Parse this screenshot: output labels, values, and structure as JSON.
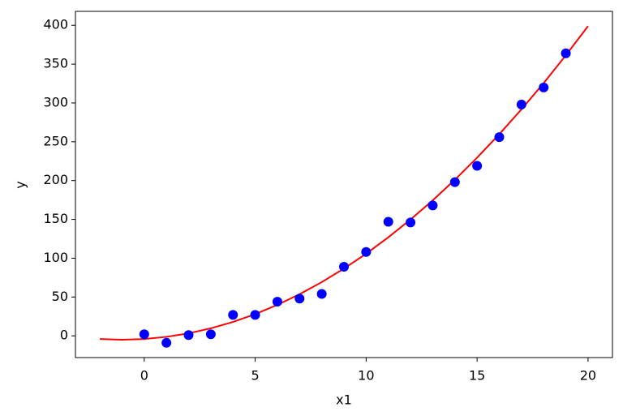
{
  "chart_data": {
    "type": "scatter",
    "xlabel": "x1",
    "ylabel": "y",
    "xlim": [
      -3.1,
      21.1
    ],
    "ylim": [
      -28,
      418
    ],
    "xticks": [
      0,
      5,
      10,
      15,
      20
    ],
    "yticks": [
      0,
      50,
      100,
      150,
      200,
      250,
      300,
      350,
      400
    ],
    "grid": false,
    "series": [
      {
        "type": "scatter",
        "color": "#0000ff",
        "x": [
          0,
          1,
          2,
          3,
          4,
          5,
          6,
          7,
          8,
          9,
          10,
          11,
          12,
          13,
          14,
          15,
          16,
          17,
          18,
          19
        ],
        "values": [
          2,
          -9,
          1,
          2,
          27,
          27,
          44,
          48,
          54,
          89,
          108,
          147,
          146,
          168,
          198,
          219,
          256,
          298,
          320,
          364
        ]
      },
      {
        "type": "line",
        "color": "#ff0000",
        "x": [
          -2,
          -1,
          0,
          1,
          2,
          3,
          4,
          5,
          6,
          7,
          8,
          9,
          10,
          11,
          12,
          13,
          14,
          15,
          16,
          17,
          18,
          19,
          20
        ],
        "values": [
          -4.1,
          -5.0,
          -4.1,
          -1.3,
          3.2,
          9.7,
          17.9,
          28.0,
          39.9,
          53.6,
          69.2,
          86.6,
          105.8,
          126.9,
          149.8,
          174.5,
          201.1,
          229.5,
          259.7,
          291.8,
          325.6,
          361.4,
          398.9
        ]
      }
    ]
  }
}
